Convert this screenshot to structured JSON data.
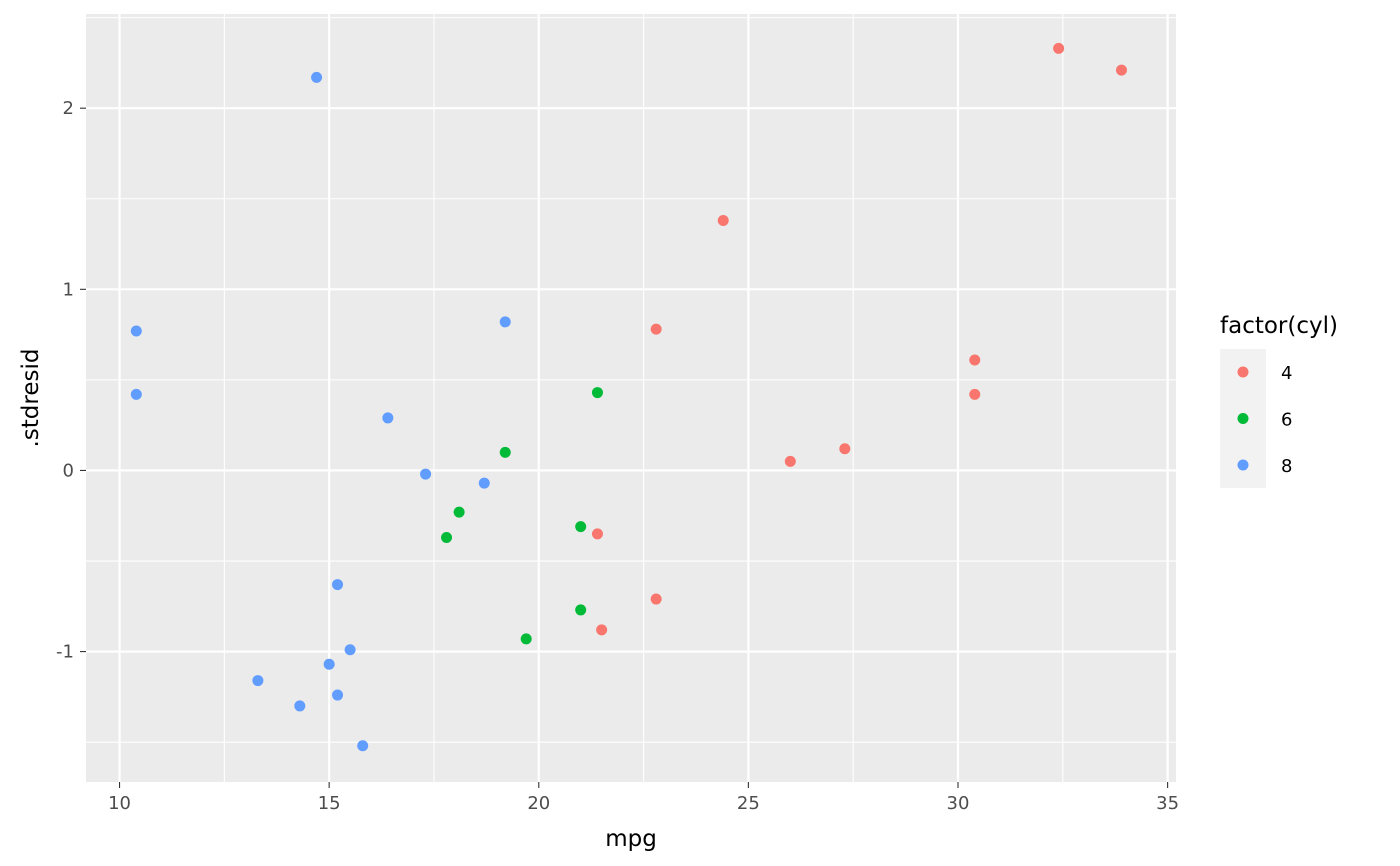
{
  "chart_data": {
    "type": "scatter",
    "title": "",
    "xlabel": "mpg",
    "ylabel": ".stdresid",
    "xlim": [
      9.2,
      35.2
    ],
    "ylim": [
      -1.72,
      2.52
    ],
    "x_ticks": [
      10,
      15,
      20,
      25,
      30,
      35
    ],
    "x_tick_labels": [
      "10",
      "15",
      "20",
      "25",
      "30",
      "35"
    ],
    "y_ticks": [
      -1,
      0,
      1,
      2
    ],
    "y_tick_labels": [
      "-1",
      "0",
      "1",
      "2"
    ],
    "grid": true,
    "legend": {
      "title": "factor(cyl)",
      "position": "right"
    },
    "series": [
      {
        "name": "4",
        "color": "#F8766D",
        "points": [
          [
            32.4,
            2.33
          ],
          [
            33.9,
            2.21
          ],
          [
            24.4,
            1.38
          ],
          [
            22.8,
            0.78
          ],
          [
            30.4,
            0.61
          ],
          [
            30.4,
            0.42
          ],
          [
            27.3,
            0.12
          ],
          [
            26.0,
            0.05
          ],
          [
            21.4,
            -0.35
          ],
          [
            22.8,
            -0.71
          ],
          [
            21.5,
            -0.88
          ]
        ]
      },
      {
        "name": "6",
        "color": "#00BA38",
        "points": [
          [
            21.4,
            0.43
          ],
          [
            19.2,
            0.1
          ],
          [
            18.1,
            -0.23
          ],
          [
            17.8,
            -0.37
          ],
          [
            21.0,
            -0.31
          ],
          [
            21.0,
            -0.77
          ],
          [
            19.7,
            -0.93
          ]
        ]
      },
      {
        "name": "8",
        "color": "#619CFF",
        "points": [
          [
            14.7,
            2.17
          ],
          [
            10.4,
            0.77
          ],
          [
            10.4,
            0.42
          ],
          [
            19.2,
            0.82
          ],
          [
            16.4,
            0.29
          ],
          [
            17.3,
            -0.02
          ],
          [
            18.7,
            -0.07
          ],
          [
            15.2,
            -0.63
          ],
          [
            15.5,
            -0.99
          ],
          [
            15.0,
            -1.07
          ],
          [
            13.3,
            -1.16
          ],
          [
            15.2,
            -1.24
          ],
          [
            14.3,
            -1.3
          ],
          [
            15.8,
            -1.52
          ]
        ]
      }
    ]
  }
}
